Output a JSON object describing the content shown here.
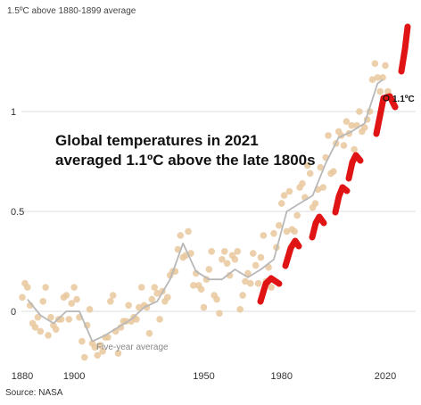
{
  "chart_data": {
    "type": "scatter",
    "ylabel": "1.5ºC above 1880-1899 average",
    "headline": [
      "Global temperatures in 2021",
      "averaged 1.1ºC above the late 1800s"
    ],
    "source": "Source: NASA",
    "x_ticks": [
      "1880",
      "1900",
      "1950",
      "1980",
      "2020"
    ],
    "y_ticks": [
      "1",
      "0.5",
      "0"
    ],
    "xlim": [
      1877,
      2028
    ],
    "ylim": [
      -0.3,
      1.5
    ],
    "grid": true,
    "colors": {
      "dots": "#e9c89c",
      "line": "#b8b8b8",
      "marks": "#e01414",
      "grid": "#dddddd"
    },
    "annotations": {
      "five_year": "Five-year average",
      "current": "1.1ºC"
    },
    "series": [
      {
        "name": "Annual",
        "x": [
          1880,
          1881,
          1882,
          1883,
          1884,
          1885,
          1886,
          1887,
          1888,
          1889,
          1890,
          1891,
          1892,
          1893,
          1894,
          1895,
          1896,
          1897,
          1898,
          1899,
          1900,
          1901,
          1902,
          1903,
          1904,
          1905,
          1906,
          1907,
          1908,
          1909,
          1910,
          1911,
          1912,
          1913,
          1914,
          1915,
          1916,
          1917,
          1918,
          1919,
          1920,
          1921,
          1922,
          1923,
          1924,
          1925,
          1926,
          1927,
          1928,
          1929,
          1930,
          1931,
          1932,
          1933,
          1934,
          1935,
          1936,
          1937,
          1938,
          1939,
          1940,
          1941,
          1942,
          1943,
          1944,
          1945,
          1946,
          1947,
          1948,
          1949,
          1950,
          1951,
          1952,
          1953,
          1954,
          1955,
          1956,
          1957,
          1958,
          1959,
          1960,
          1961,
          1962,
          1963,
          1964,
          1965,
          1966,
          1967,
          1968,
          1969,
          1970,
          1971,
          1972,
          1973,
          1974,
          1975,
          1976,
          1977,
          1978,
          1979,
          1980,
          1981,
          1982,
          1983,
          1984,
          1985,
          1986,
          1987,
          1988,
          1989,
          1990,
          1991,
          1992,
          1993,
          1994,
          1995,
          1996,
          1997,
          1998,
          1999,
          2000,
          2001,
          2002,
          2003,
          2004,
          2005,
          2006,
          2007,
          2008,
          2009,
          2010,
          2011,
          2012,
          2013,
          2014,
          2015,
          2016,
          2017,
          2018,
          2019,
          2020,
          2021
        ],
        "y": [
          0.07,
          0.14,
          0.12,
          0.03,
          -0.06,
          -0.08,
          -0.03,
          -0.1,
          0.05,
          0.12,
          -0.12,
          -0.03,
          -0.07,
          -0.09,
          -0.04,
          -0.04,
          0.07,
          0.08,
          -0.04,
          0.04,
          0.12,
          0.06,
          -0.03,
          -0.15,
          -0.23,
          -0.07,
          0.01,
          -0.16,
          -0.18,
          -0.22,
          -0.17,
          -0.2,
          -0.13,
          -0.13,
          0.05,
          0.08,
          -0.1,
          -0.21,
          -0.08,
          -0.05,
          -0.05,
          0.03,
          -0.05,
          -0.03,
          -0.04,
          0.02,
          0.12,
          0.03,
          0.02,
          -0.11,
          0.06,
          0.12,
          0.09,
          -0.04,
          0.1,
          0.05,
          0.07,
          0.18,
          0.2,
          0.2,
          0.31,
          0.38,
          0.27,
          0.28,
          0.4,
          0.29,
          0.13,
          0.19,
          0.13,
          0.11,
          0.02,
          0.16,
          0.21,
          0.3,
          0.08,
          0.06,
          -0.01,
          0.26,
          0.3,
          0.24,
          0.18,
          0.28,
          0.26,
          0.3,
          0.01,
          0.08,
          0.15,
          0.19,
          0.14,
          0.29,
          0.23,
          0.14,
          0.27,
          0.38,
          0.15,
          0.22,
          0.12,
          0.39,
          0.32,
          0.43,
          0.54,
          0.58,
          0.4,
          0.6,
          0.41,
          0.4,
          0.48,
          0.62,
          0.64,
          0.57,
          0.73,
          0.69,
          0.52,
          0.54,
          0.61,
          0.72,
          0.62,
          0.77,
          0.88,
          0.69,
          0.7,
          0.84,
          0.9,
          0.88,
          0.83,
          0.95,
          0.89,
          0.93,
          0.81,
          0.93,
          1.0,
          0.9,
          0.92,
          0.96,
          1.0,
          1.16,
          1.24,
          1.17,
          1.1,
          1.17,
          1.23,
          1.1
        ]
      },
      {
        "name": "Five-year average",
        "x": [
          1882,
          1887,
          1892,
          1897,
          1902,
          1907,
          1912,
          1917,
          1922,
          1927,
          1932,
          1937,
          1942,
          1947,
          1952,
          1957,
          1962,
          1967,
          1972,
          1977,
          1982,
          1987,
          1992,
          1997,
          2002,
          2007,
          2012,
          2017,
          2019
        ],
        "y": [
          0.06,
          -0.02,
          -0.06,
          0.0,
          0.0,
          -0.15,
          -0.12,
          -0.08,
          -0.04,
          0.02,
          0.05,
          0.16,
          0.34,
          0.2,
          0.16,
          0.16,
          0.21,
          0.17,
          0.21,
          0.26,
          0.5,
          0.54,
          0.58,
          0.74,
          0.87,
          0.9,
          0.94,
          1.14,
          1.16
        ]
      }
    ]
  }
}
